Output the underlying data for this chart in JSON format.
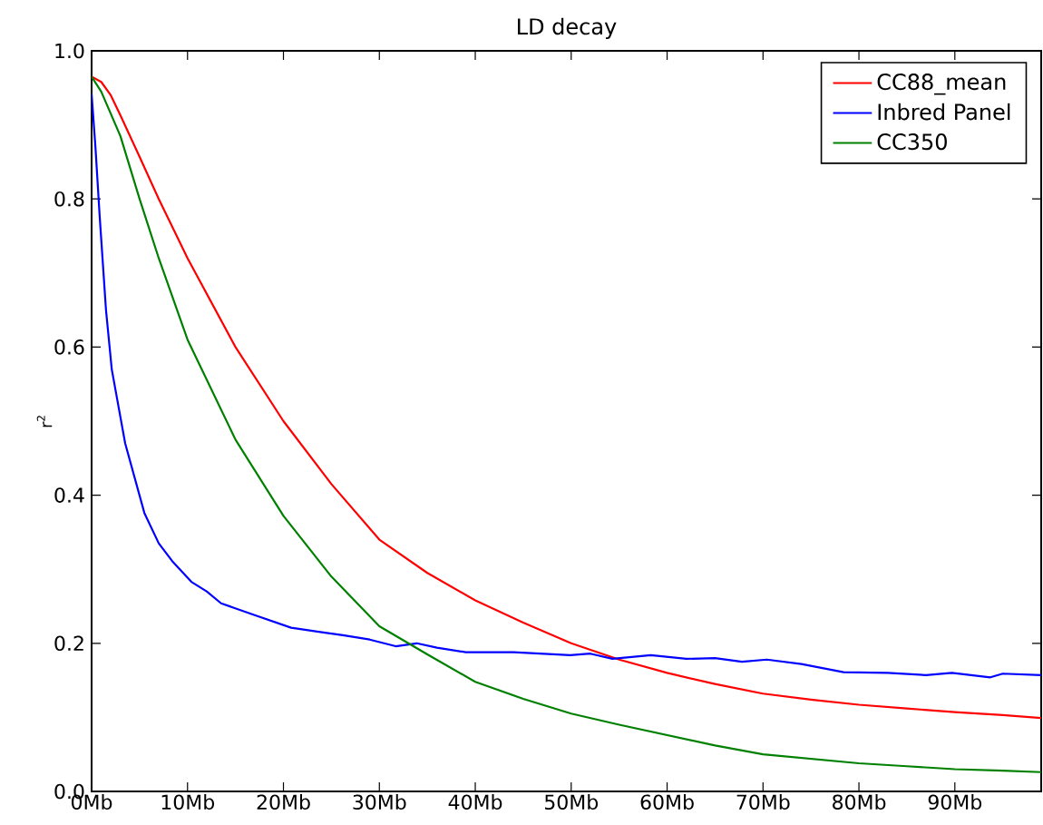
{
  "chart_data": {
    "type": "line",
    "title": "LD decay",
    "ylabel": "r$^{2}$",
    "xlim": [
      0,
      99
    ],
    "ylim": [
      0,
      1
    ],
    "xticks": [
      {
        "value": 0,
        "label": "0Mb"
      },
      {
        "value": 10,
        "label": "10Mb"
      },
      {
        "value": 20,
        "label": "20Mb"
      },
      {
        "value": 30,
        "label": "30Mb"
      },
      {
        "value": 40,
        "label": "40Mb"
      },
      {
        "value": 50,
        "label": "50Mb"
      },
      {
        "value": 60,
        "label": "60Mb"
      },
      {
        "value": 70,
        "label": "70Mb"
      },
      {
        "value": 80,
        "label": "80Mb"
      },
      {
        "value": 90,
        "label": "90Mb"
      }
    ],
    "yticks": [
      {
        "value": 0,
        "label": "0.0"
      },
      {
        "value": 0.2,
        "label": "0.2"
      },
      {
        "value": 0.4,
        "label": "0.4"
      },
      {
        "value": 0.6,
        "label": "0.6"
      },
      {
        "value": 0.8,
        "label": "0.8"
      },
      {
        "value": 1,
        "label": "1.0"
      }
    ],
    "legend": "top right",
    "grid": false,
    "marker": "none",
    "line_style": "solid",
    "series": [
      {
        "name": "CC88_mean",
        "color": "#ff0000",
        "x": [
          0,
          1,
          2,
          3,
          5,
          7,
          10,
          15,
          20,
          25,
          30,
          35,
          40,
          45,
          50,
          55,
          60,
          65,
          70,
          75,
          80,
          85,
          90,
          95,
          99
        ],
        "values": [
          0.965,
          0.958,
          0.94,
          0.913,
          0.857,
          0.8,
          0.72,
          0.6,
          0.5,
          0.415,
          0.34,
          0.295,
          0.258,
          0.228,
          0.2,
          0.178,
          0.16,
          0.145,
          0.132,
          0.124,
          0.117,
          0.112,
          0.107,
          0.103,
          0.099
        ]
      },
      {
        "name": "Inbred Panel",
        "color": "#0000ff",
        "x": [
          0,
          0.4,
          0.85,
          1.5,
          2.1,
          3.5,
          5.5,
          7,
          8.4,
          10.4,
          12,
          13.5,
          17,
          20.8,
          24,
          26.2,
          29,
          31.7,
          33.9,
          36,
          39,
          44,
          49.9,
          52,
          54.3,
          58.3,
          62,
          65,
          67.8,
          70.4,
          74,
          78.4,
          83,
          87,
          89.7,
          93.7,
          95,
          99
        ],
        "values": [
          0.942,
          0.87,
          0.775,
          0.65,
          0.57,
          0.47,
          0.376,
          0.335,
          0.311,
          0.283,
          0.27,
          0.254,
          0.238,
          0.221,
          0.215,
          0.211,
          0.205,
          0.196,
          0.2,
          0.194,
          0.188,
          0.188,
          0.184,
          0.186,
          0.179,
          0.184,
          0.179,
          0.18,
          0.175,
          0.178,
          0.172,
          0.161,
          0.16,
          0.157,
          0.16,
          0.154,
          0.159,
          0.157
        ]
      },
      {
        "name": "CC350",
        "color": "#008000",
        "x": [
          0,
          1,
          3,
          5,
          7,
          10,
          15,
          20,
          25,
          30,
          35,
          40,
          45,
          50,
          55,
          60,
          65,
          70,
          75,
          80,
          85,
          90,
          95,
          99
        ],
        "values": [
          0.965,
          0.945,
          0.885,
          0.8,
          0.72,
          0.61,
          0.475,
          0.372,
          0.29,
          0.223,
          0.185,
          0.148,
          0.125,
          0.105,
          0.09,
          0.076,
          0.062,
          0.05,
          0.044,
          0.038,
          0.034,
          0.03,
          0.028,
          0.026
        ]
      }
    ]
  }
}
